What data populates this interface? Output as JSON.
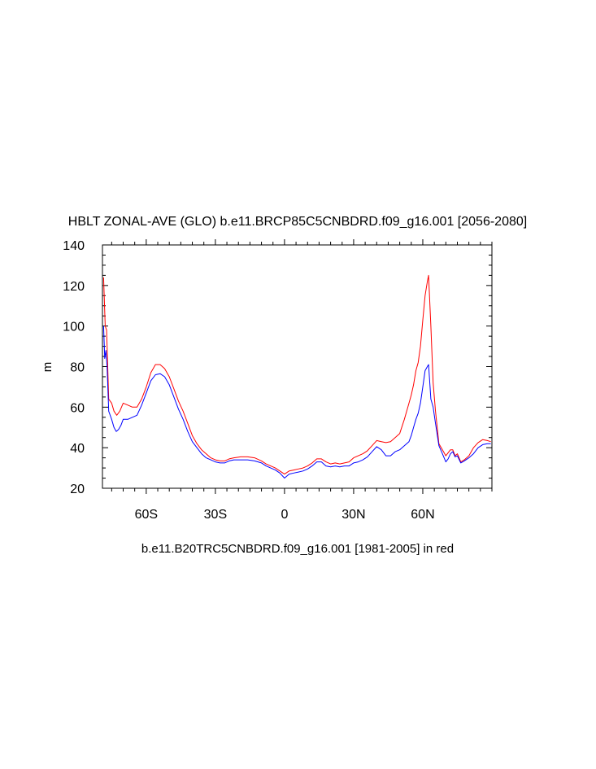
{
  "chart_data": {
    "type": "line",
    "title": "HBLT ZONAL-AVE (GLO) b.e11.BRCP85C5CNBDRD.f09_g16.001 [2056-2080]",
    "ylabel": "m",
    "xlabel": "b.e11.B20TRC5CNBDRD.f09_g16.001 [1981-2005] in red",
    "xlim": [
      -79,
      90
    ],
    "ylim": [
      20,
      140
    ],
    "grid": false,
    "x_ticks": [
      {
        "value": -60,
        "label": "60S"
      },
      {
        "value": -30,
        "label": "30S"
      },
      {
        "value": 0,
        "label": "0"
      },
      {
        "value": 30,
        "label": "30N"
      },
      {
        "value": 60,
        "label": "60N"
      }
    ],
    "y_ticks": [
      20,
      40,
      60,
      80,
      100,
      120,
      140
    ],
    "series": [
      {
        "color": "#ff0000",
        "points": [
          [
            -78.5,
            124
          ],
          [
            -77.8,
            100
          ],
          [
            -77.2,
            98
          ],
          [
            -76.3,
            64
          ],
          [
            -75,
            62
          ],
          [
            -74,
            58
          ],
          [
            -72.8,
            56
          ],
          [
            -71.5,
            58
          ],
          [
            -70,
            62
          ],
          [
            -68,
            61
          ],
          [
            -66,
            60
          ],
          [
            -64,
            60
          ],
          [
            -62,
            64
          ],
          [
            -60,
            70
          ],
          [
            -58,
            77
          ],
          [
            -56,
            81
          ],
          [
            -54,
            81
          ],
          [
            -52,
            79
          ],
          [
            -50,
            75
          ],
          [
            -48,
            69
          ],
          [
            -46,
            63
          ],
          [
            -44,
            58
          ],
          [
            -42,
            52
          ],
          [
            -40,
            46
          ],
          [
            -38,
            42
          ],
          [
            -36,
            39
          ],
          [
            -34,
            37
          ],
          [
            -32,
            35
          ],
          [
            -30,
            34
          ],
          [
            -28,
            33.5
          ],
          [
            -26,
            33.5
          ],
          [
            -24,
            34.5
          ],
          [
            -22,
            35
          ],
          [
            -19,
            35.5
          ],
          [
            -16,
            35.5
          ],
          [
            -13,
            35
          ],
          [
            -10,
            33.5
          ],
          [
            -8,
            32
          ],
          [
            -6,
            31
          ],
          [
            -4,
            30
          ],
          [
            -2,
            28.5
          ],
          [
            0,
            27
          ],
          [
            2,
            28.5
          ],
          [
            4,
            29
          ],
          [
            6,
            29.5
          ],
          [
            8,
            30
          ],
          [
            10,
            31
          ],
          [
            12,
            32.5
          ],
          [
            14,
            34.5
          ],
          [
            16,
            34.5
          ],
          [
            18,
            33
          ],
          [
            20,
            32
          ],
          [
            22,
            32.5
          ],
          [
            24,
            32
          ],
          [
            26,
            32.5
          ],
          [
            28,
            33
          ],
          [
            30,
            35
          ],
          [
            32,
            36
          ],
          [
            34,
            37
          ],
          [
            36,
            38.5
          ],
          [
            38,
            41
          ],
          [
            40,
            43.5
          ],
          [
            42,
            43
          ],
          [
            44,
            42.5
          ],
          [
            46,
            43
          ],
          [
            48,
            45
          ],
          [
            50,
            47
          ],
          [
            52,
            54
          ],
          [
            54,
            62
          ],
          [
            55,
            66
          ],
          [
            56,
            71
          ],
          [
            57,
            78
          ],
          [
            58,
            82
          ],
          [
            59,
            90
          ],
          [
            60,
            103
          ],
          [
            61,
            115
          ],
          [
            62,
            122
          ],
          [
            62.5,
            125
          ],
          [
            63.5,
            100
          ],
          [
            64.5,
            72
          ],
          [
            65.5,
            58
          ],
          [
            67,
            42
          ],
          [
            69,
            38
          ],
          [
            70,
            36
          ],
          [
            72,
            39
          ],
          [
            73,
            39
          ],
          [
            74,
            36
          ],
          [
            75,
            37
          ],
          [
            76.5,
            33
          ],
          [
            78,
            34
          ],
          [
            80,
            36
          ],
          [
            82,
            40
          ],
          [
            84,
            42.5
          ],
          [
            86,
            44
          ],
          [
            88,
            43.5
          ],
          [
            89.5,
            43
          ]
        ]
      },
      {
        "color": "#0000ff",
        "points": [
          [
            -78.5,
            100
          ],
          [
            -78,
            84
          ],
          [
            -77.5,
            88
          ],
          [
            -77,
            80
          ],
          [
            -76.3,
            58
          ],
          [
            -75,
            54
          ],
          [
            -74,
            50
          ],
          [
            -73,
            48
          ],
          [
            -72,
            49
          ],
          [
            -71,
            51
          ],
          [
            -70,
            54
          ],
          [
            -68,
            54
          ],
          [
            -66,
            55
          ],
          [
            -64,
            56
          ],
          [
            -62,
            61
          ],
          [
            -60,
            67
          ],
          [
            -58,
            73
          ],
          [
            -56,
            76
          ],
          [
            -54,
            76.5
          ],
          [
            -52,
            75
          ],
          [
            -50,
            71
          ],
          [
            -48,
            65
          ],
          [
            -46,
            59
          ],
          [
            -44,
            54
          ],
          [
            -42,
            48
          ],
          [
            -40,
            43
          ],
          [
            -38,
            40
          ],
          [
            -36,
            37
          ],
          [
            -34,
            35
          ],
          [
            -32,
            34
          ],
          [
            -30,
            33
          ],
          [
            -28,
            32.5
          ],
          [
            -26,
            32.5
          ],
          [
            -24,
            33.5
          ],
          [
            -22,
            34
          ],
          [
            -19,
            34
          ],
          [
            -16,
            34
          ],
          [
            -13,
            33.5
          ],
          [
            -10,
            32.5
          ],
          [
            -8,
            31
          ],
          [
            -6,
            30
          ],
          [
            -4,
            29
          ],
          [
            -2,
            27.5
          ],
          [
            0,
            25
          ],
          [
            2,
            27
          ],
          [
            4,
            27.5
          ],
          [
            6,
            28
          ],
          [
            8,
            28.5
          ],
          [
            10,
            29.5
          ],
          [
            12,
            31
          ],
          [
            14,
            33
          ],
          [
            16,
            33
          ],
          [
            18,
            31
          ],
          [
            20,
            30.5
          ],
          [
            22,
            31
          ],
          [
            24,
            30.5
          ],
          [
            26,
            31
          ],
          [
            28,
            31
          ],
          [
            30,
            32.5
          ],
          [
            32,
            33
          ],
          [
            34,
            34
          ],
          [
            36,
            35.5
          ],
          [
            38,
            38
          ],
          [
            40,
            40.5
          ],
          [
            42,
            39
          ],
          [
            44,
            36
          ],
          [
            46,
            36
          ],
          [
            48,
            38
          ],
          [
            50,
            39
          ],
          [
            52,
            41
          ],
          [
            54,
            43
          ],
          [
            55,
            46
          ],
          [
            56,
            50
          ],
          [
            57,
            54
          ],
          [
            58,
            57
          ],
          [
            59,
            62
          ],
          [
            60,
            70
          ],
          [
            61,
            78
          ],
          [
            62,
            80
          ],
          [
            62.5,
            81
          ],
          [
            63.5,
            64
          ],
          [
            64.5,
            60
          ],
          [
            65.5,
            52
          ],
          [
            67,
            41
          ],
          [
            68.5,
            37
          ],
          [
            70,
            33
          ],
          [
            71,
            34.5
          ],
          [
            72,
            37
          ],
          [
            73,
            38
          ],
          [
            74,
            35.5
          ],
          [
            75,
            36
          ],
          [
            76.5,
            32.5
          ],
          [
            78,
            33.5
          ],
          [
            80,
            35
          ],
          [
            82,
            37
          ],
          [
            84,
            40
          ],
          [
            86,
            41.5
          ],
          [
            88,
            42
          ],
          [
            89.5,
            42
          ]
        ]
      }
    ]
  }
}
